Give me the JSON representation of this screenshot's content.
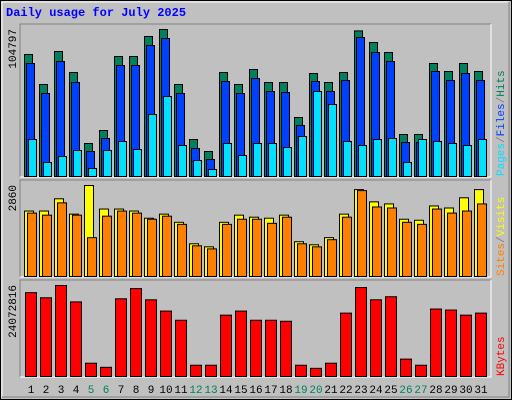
{
  "chart_data": {
    "type": "bar",
    "title": "Daily usage for July 2025",
    "categories": [
      "1",
      "2",
      "3",
      "4",
      "5",
      "6",
      "7",
      "8",
      "9",
      "10",
      "11",
      "12",
      "13",
      "14",
      "15",
      "16",
      "17",
      "18",
      "19",
      "20",
      "21",
      "22",
      "23",
      "24",
      "25",
      "26",
      "27",
      "28",
      "29",
      "30",
      "31"
    ],
    "category_colors": [
      "#000000",
      "#000000",
      "#000000",
      "#000000",
      "#00805c",
      "#00805c",
      "#000000",
      "#000000",
      "#000000",
      "#000000",
      "#000000",
      "#00805c",
      "#00805c",
      "#000000",
      "#000000",
      "#000000",
      "#000000",
      "#000000",
      "#00805c",
      "#00805c",
      "#000000",
      "#000000",
      "#000000",
      "#000000",
      "#000000",
      "#00805c",
      "#00805c",
      "#000000",
      "#000000",
      "#000000",
      "#000000"
    ],
    "legend_separator": "/",
    "panels": [
      {
        "ylim": [
          0,
          104797
        ],
        "yticks": [
          104797
        ],
        "series": [
          {
            "name": "Hits",
            "color": "#00805c",
            "values": [
              86970,
              65590,
              89110,
              74140,
              23530,
              32790,
              85550,
              85550,
              99810,
              104797,
              65590,
              26380,
              17820,
              74140,
              65590,
              76280,
              67010,
              67010,
              42060,
              73430,
              67010,
              74140,
              103800,
              95530,
              88400,
              29940,
              29940,
              80560,
              74860,
              80560,
              74860
            ]
          },
          {
            "name": "Files",
            "color": "#0040ff",
            "values": [
              80560,
              59170,
              81990,
              67010,
              17820,
              27090,
              79130,
              79130,
              93390,
              98380,
              59170,
              19960,
              12120,
              67730,
              59170,
              69860,
              60600,
              59880,
              36360,
              67730,
              60600,
              68440,
              99100,
              88400,
              81990,
              24240,
              24240,
              74860,
              68440,
              73430,
              68440
            ]
          },
          {
            "name": "Pages",
            "color": "#00e0ff",
            "values": [
              26380,
              9980,
              14260,
              18540,
              5700,
              18540,
              24950,
              19250,
              44200,
              57030,
              22100,
              11410,
              4990,
              23530,
              14970,
              23530,
              23530,
              20670,
              28520,
              60600,
              51330,
              24950,
              22100,
              26380,
              27090,
              9980,
              26380,
              24950,
              23530,
              22100,
              26380
            ]
          }
        ]
      },
      {
        "ylim": [
          0,
          2860
        ],
        "yticks": [
          2860
        ],
        "series": [
          {
            "name": "Visits",
            "color": "#ffff00",
            "values": [
              2057,
              2057,
              2442,
              1960,
              2860,
              2120,
              2120,
              2057,
              1832,
              1960,
              1703,
              1028,
              932,
              1703,
              1928,
              1864,
              1832,
              1928,
              1093,
              996,
              1221,
              1960,
              2731,
              2346,
              2281,
              1800,
              1767,
              2217,
              2153,
              2474,
              2731
            ]
          },
          {
            "name": "Sites",
            "color": "#ff8000",
            "values": [
              1992,
              1928,
              2314,
              1928,
              1221,
              1896,
              2057,
              1992,
              1800,
              1896,
              1639,
              964,
              868,
              1639,
              1800,
              1800,
              1671,
              1864,
              1028,
              932,
              1157,
              1864,
              2699,
              2185,
              2153,
              1703,
              1639,
              2120,
              1992,
              2057,
              2281
            ]
          }
        ]
      },
      {
        "ylim": [
          0,
          24072816
        ],
        "yticks": [
          24072816
        ],
        "series": [
          {
            "name": "KBytes",
            "color": "#ff0000",
            "values": [
              22180000,
              20830000,
              24072816,
              19740000,
              3520000,
              2430000,
              20560000,
              23260000,
              20290000,
              17310000,
              14880000,
              2980000,
              2980000,
              16230000,
              17310000,
              14880000,
              14880000,
              14610000,
              2980000,
              2160000,
              3520000,
              16770000,
              23530000,
              20290000,
              21100000,
              4600000,
              2980000,
              17850000,
              17580000,
              16230000,
              16770000
            ]
          }
        ]
      }
    ]
  }
}
